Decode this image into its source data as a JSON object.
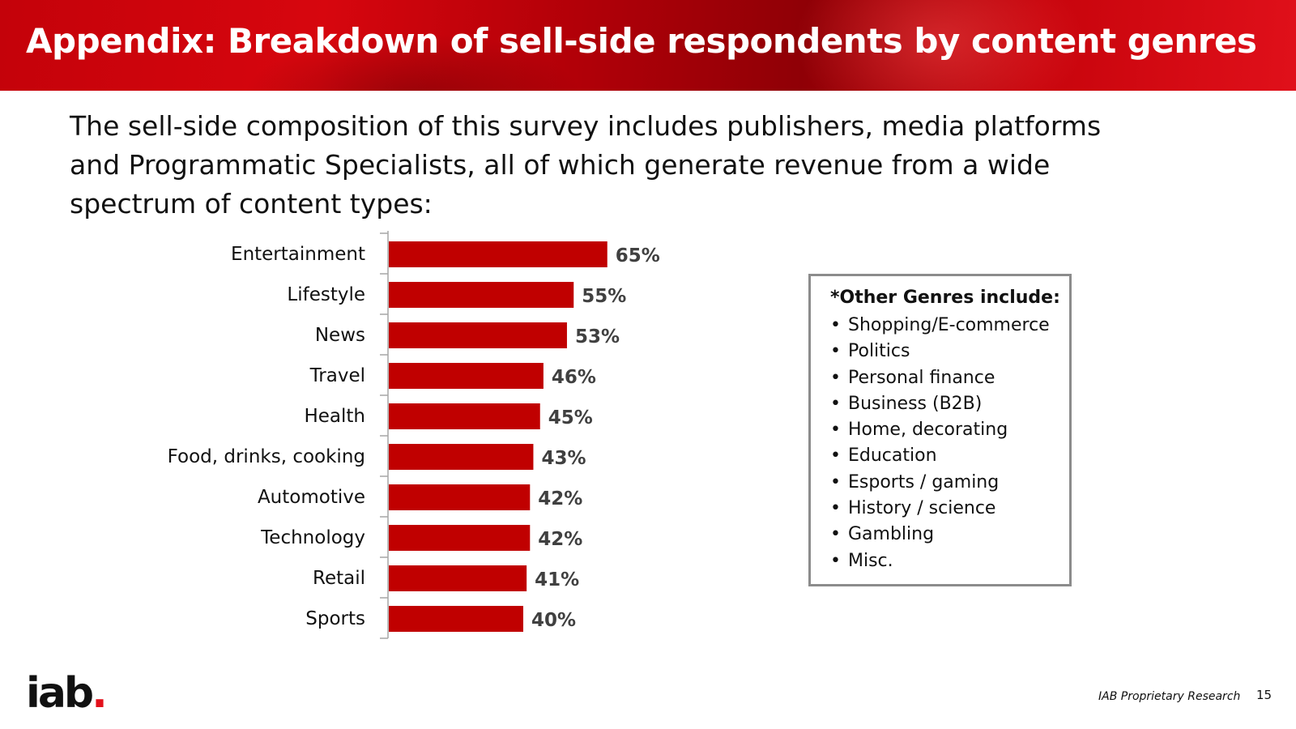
{
  "slide": {
    "title": "Appendix:  Breakdown of sell-side respondents by content genres",
    "intro": "The sell-side composition of this survey includes publishers, media platforms and Programmatic Specialists, all of which generate revenue from a wide spectrum of content types:"
  },
  "chart_data": {
    "type": "bar",
    "orientation": "horizontal",
    "categories": [
      "Entertainment",
      "Lifestyle",
      "News",
      "Travel",
      "Health",
      "Food, drinks, cooking",
      "Automotive",
      "Technology",
      "Retail",
      "Sports"
    ],
    "values": [
      65,
      55,
      53,
      46,
      45,
      43,
      42,
      42,
      41,
      40
    ],
    "value_labels": [
      "65%",
      "55%",
      "53%",
      "46%",
      "45%",
      "43%",
      "42%",
      "42%",
      "41%",
      "40%"
    ],
    "unit": "%",
    "xlim": [
      0,
      100
    ],
    "grid": false,
    "bar_color": "#c00000",
    "label_color": "#404040"
  },
  "other_genres": {
    "title": "*Other Genres include:",
    "bullet": "•",
    "items": [
      "Shopping/E-commerce",
      "Politics",
      "Personal finance",
      "Business (B2B)",
      "Home, decorating",
      "Education",
      "Esports / gaming",
      "History / science",
      "Gambling",
      "Misc."
    ]
  },
  "footer": {
    "logo_text": "iab",
    "logo_dot": ".",
    "source": "IAB Proprietary Research",
    "page": "15"
  },
  "colors": {
    "header_red": "#c4020a",
    "bar_red": "#c00000",
    "logo_red": "#e3111b"
  }
}
